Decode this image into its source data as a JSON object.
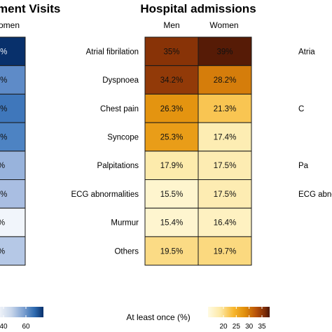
{
  "chart_data": [
    {
      "type": "heatmap",
      "title": "ment Visits",
      "columns": [
        "",
        "omen"
      ],
      "rows": [
        "",
        "",
        "",
        "",
        "",
        "",
        "",
        ""
      ],
      "cell_labels": [
        "6%",
        "6%",
        "6%",
        "6%",
        "%",
        "0%",
        "%",
        "%"
      ],
      "colorbar": {
        "ticks": [
          40,
          60
        ],
        "colors": [
          "#ffffff",
          "#c7d5ea",
          "#7b9fd0",
          "#2f6bb0",
          "#08306b"
        ]
      }
    },
    {
      "type": "heatmap",
      "title": "Hospital admissions",
      "columns": [
        "Men",
        "Women"
      ],
      "rows": [
        "Atrial fibrilation",
        "Dyspnoea",
        "Chest pain",
        "Syncope",
        "Palpitations",
        "ECG abnormalities",
        "Murmur",
        "Others"
      ],
      "values": [
        [
          35,
          39
        ],
        [
          34.2,
          28.2
        ],
        [
          26.3,
          21.3
        ],
        [
          25.3,
          17.4
        ],
        [
          17.9,
          17.5
        ],
        [
          15.5,
          17.5
        ],
        [
          15.4,
          16.4
        ],
        [
          19.5,
          19.7
        ]
      ],
      "cell_labels": [
        [
          "35%",
          "39%"
        ],
        [
          "34.2%",
          "28.2%"
        ],
        [
          "26.3%",
          "21.3%"
        ],
        [
          "25.3%",
          "17.4%"
        ],
        [
          "17.9%",
          "17.5%"
        ],
        [
          "15.5%",
          "17.5%"
        ],
        [
          "15.4%",
          "16.4%"
        ],
        [
          "19.5%",
          "19.7%"
        ]
      ],
      "color_range": [
        14,
        40
      ],
      "colorbar": {
        "label": "At least once (%)",
        "ticks": [
          20,
          25,
          30,
          35
        ],
        "colors": [
          "#fffbe3",
          "#fde9a6",
          "#f7b52b",
          "#e08e0b",
          "#b8520a",
          "#7f2d07",
          "#4a1606"
        ]
      }
    },
    {
      "type": "heatmap",
      "title": "",
      "rows": [
        "Atria",
        "",
        "C",
        "",
        "Pa",
        "ECG abno",
        "",
        ""
      ]
    }
  ]
}
